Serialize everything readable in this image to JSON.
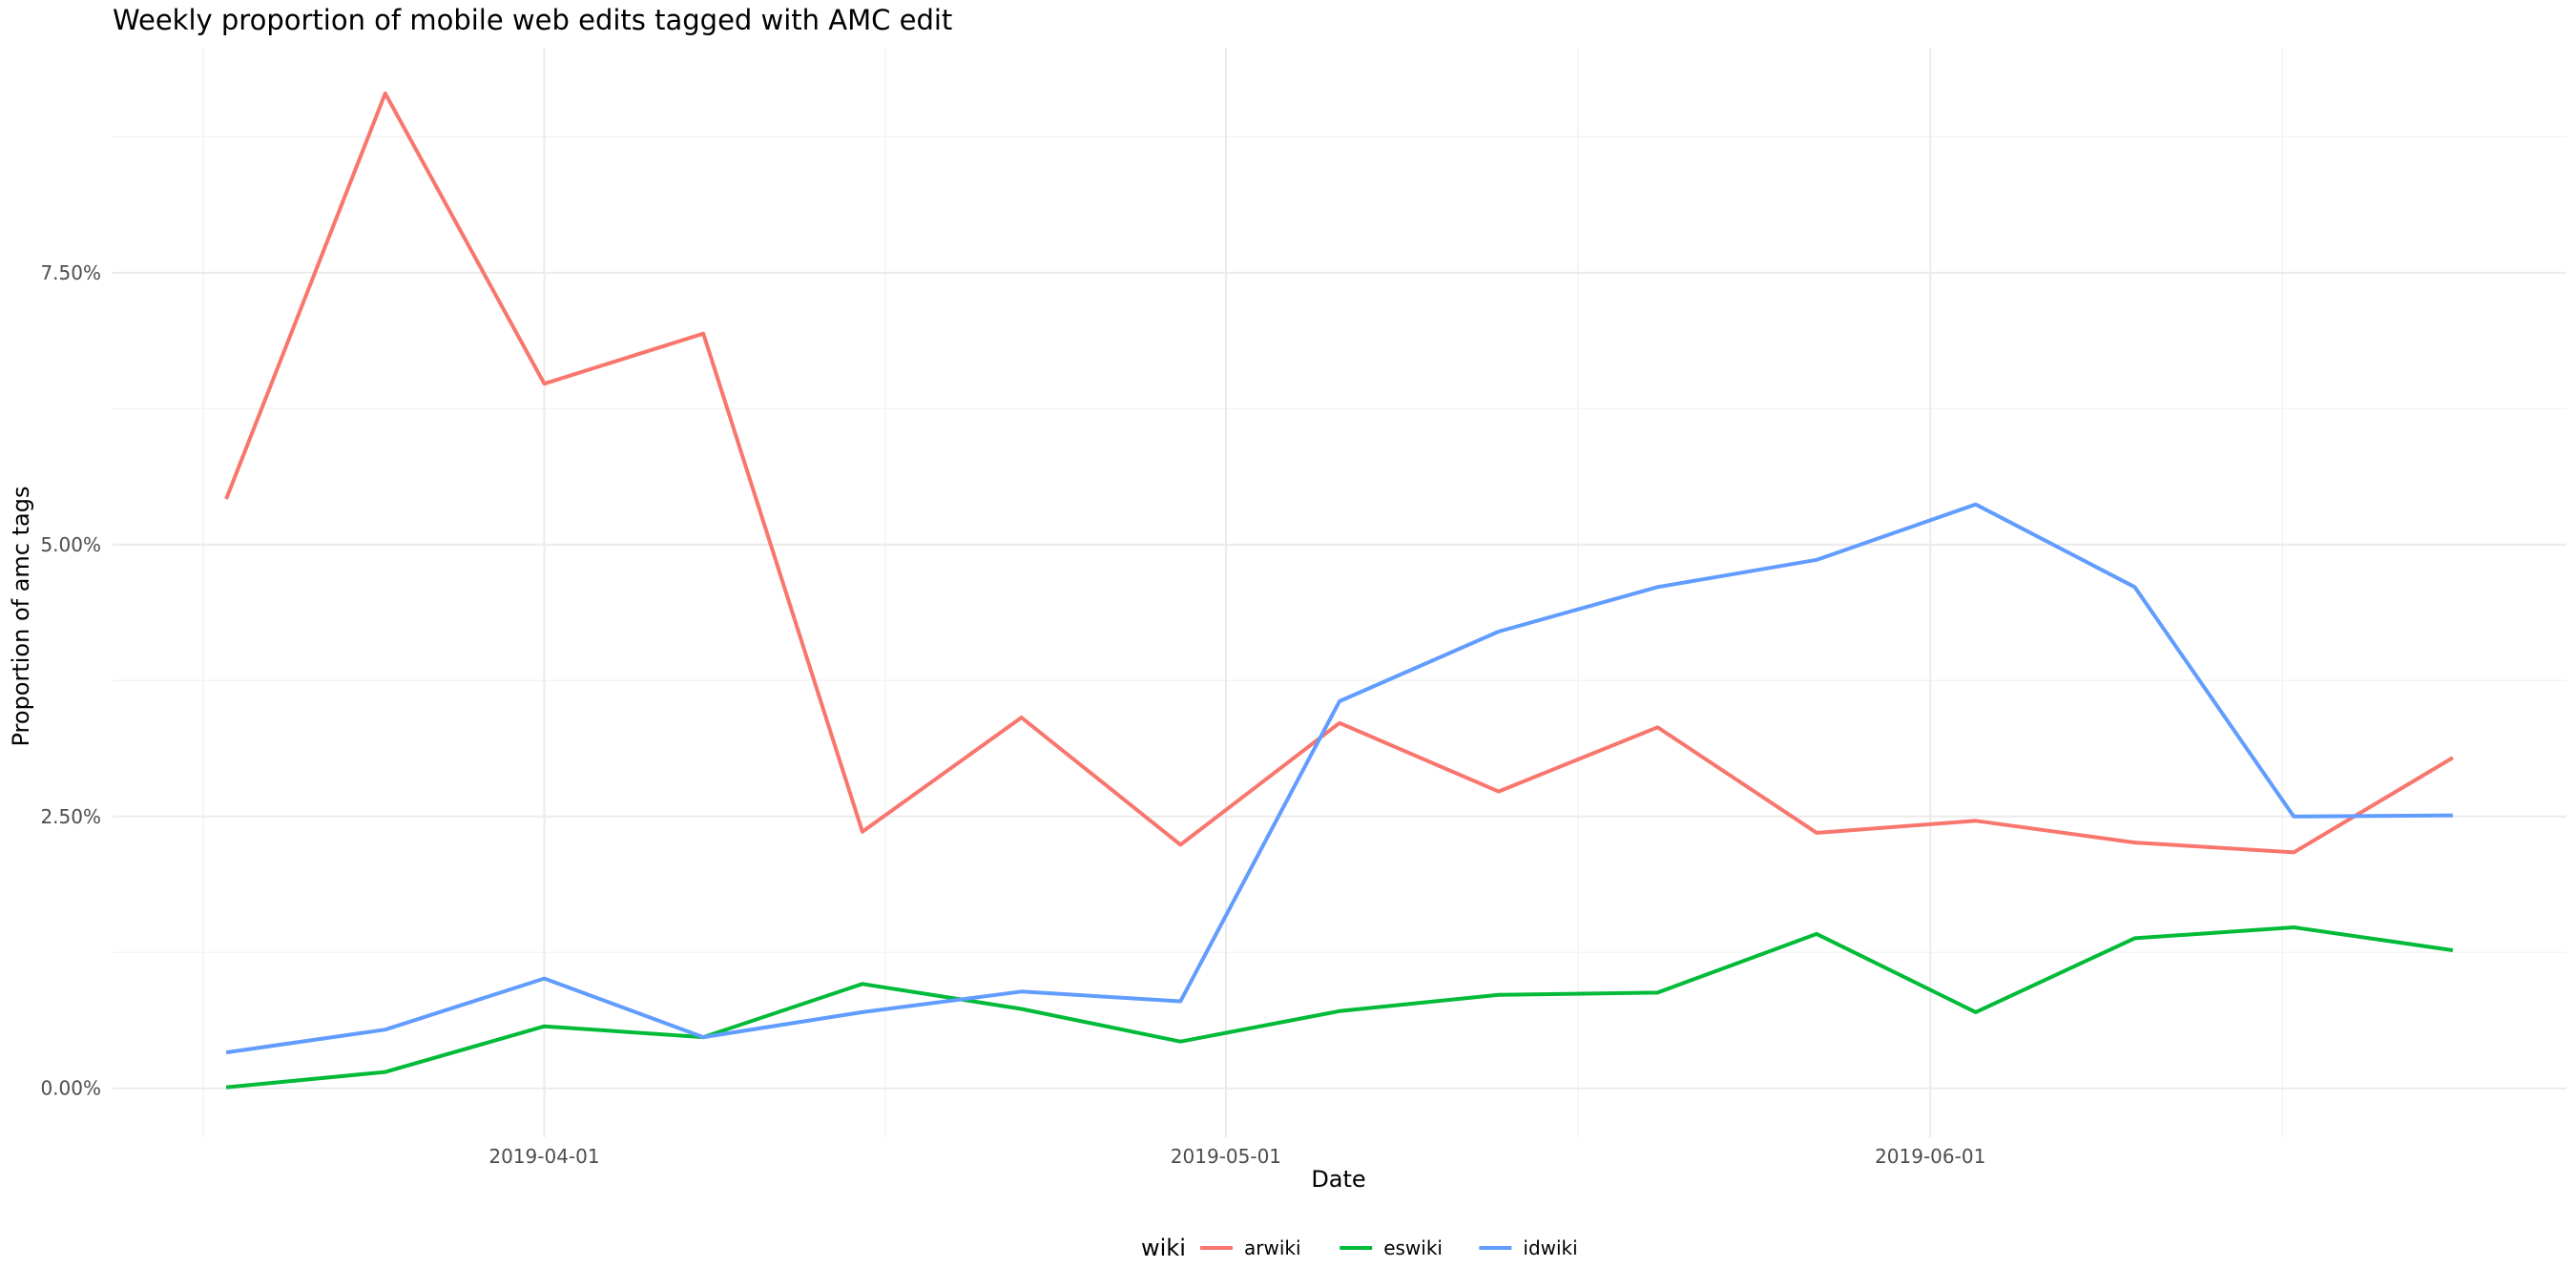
{
  "chart_data": {
    "type": "line",
    "title": "Weekly proportion of mobile web edits tagged with AMC edit",
    "xlabel": "Date",
    "ylabel": "Proportion of amc tags",
    "x_dates": [
      "2019-03-18",
      "2019-03-25",
      "2019-04-01",
      "2019-04-08",
      "2019-04-15",
      "2019-04-22",
      "2019-04-29",
      "2019-05-06",
      "2019-05-13",
      "2019-05-20",
      "2019-05-27",
      "2019-06-03",
      "2019-06-10",
      "2019-06-17",
      "2019-06-24"
    ],
    "x_ticks": [
      {
        "date": "2019-04-01",
        "label": "2019-04-01"
      },
      {
        "date": "2019-05-01",
        "label": "2019-05-01"
      },
      {
        "date": "2019-06-01",
        "label": "2019-06-01"
      }
    ],
    "x_range": [
      "2019-03-13",
      "2019-06-29"
    ],
    "y_ticks": [
      {
        "value": 0.0,
        "label": "0.00%"
      },
      {
        "value": 2.5,
        "label": "2.50%"
      },
      {
        "value": 5.0,
        "label": "5.00%"
      },
      {
        "value": 7.5,
        "label": "7.50%"
      }
    ],
    "y_range": [
      -0.45,
      9.57
    ],
    "grid": true,
    "legend_title": "wiki",
    "legend_position": "bottom",
    "series": [
      {
        "name": "arwiki",
        "color": "#F8766D",
        "values": [
          5.42,
          9.15,
          6.48,
          6.94,
          2.36,
          3.41,
          2.24,
          3.36,
          2.73,
          3.32,
          2.35,
          2.46,
          2.26,
          2.17,
          3.04
        ]
      },
      {
        "name": "eswiki",
        "color": "#00BA38",
        "values": [
          0.01,
          0.15,
          0.57,
          0.47,
          0.96,
          0.73,
          0.43,
          0.71,
          0.86,
          0.88,
          1.42,
          0.7,
          1.38,
          1.48,
          1.27
        ]
      },
      {
        "name": "idwiki",
        "color": "#619CFF",
        "values": [
          0.33,
          0.54,
          1.01,
          0.47,
          0.7,
          0.89,
          0.8,
          3.56,
          4.2,
          4.61,
          4.86,
          5.37,
          4.61,
          2.5,
          2.51
        ]
      }
    ]
  }
}
